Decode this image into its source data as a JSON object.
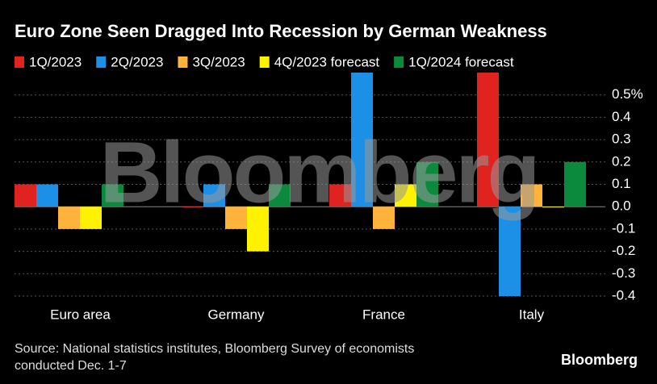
{
  "chart_data": {
    "type": "bar",
    "title": "Euro Zone Seen Dragged Into Recession by German Weakness",
    "categories": [
      "Euro area",
      "Germany",
      "France",
      "Italy"
    ],
    "series": [
      {
        "name": "1Q/2023",
        "color": "#e0231e",
        "values": [
          0.1,
          0.0,
          0.1,
          0.6
        ]
      },
      {
        "name": "2Q/2023",
        "color": "#1c8fe6",
        "values": [
          0.1,
          0.1,
          0.6,
          -0.4
        ]
      },
      {
        "name": "3Q/2023",
        "color": "#ffb33a",
        "values": [
          -0.1,
          -0.1,
          -0.1,
          0.1
        ]
      },
      {
        "name": "4Q/2023 forecast",
        "color": "#fff200",
        "values": [
          -0.1,
          -0.2,
          0.1,
          0.0
        ]
      },
      {
        "name": "1Q/2024 forecast",
        "color": "#0b8a3e",
        "values": [
          0.1,
          0.1,
          0.2,
          0.2
        ]
      }
    ],
    "ylim": [
      -0.4,
      0.6
    ],
    "yticks": [
      {
        "value": 0.5,
        "label": "0.5%"
      },
      0.4,
      0.3,
      0.2,
      0.1,
      {
        "value": 0,
        "label": "0.0"
      },
      -0.1,
      -0.2,
      -0.3,
      -0.4
    ],
    "grid": true,
    "source": "Source: National statistics institutes, Bloomberg Survey of economists",
    "source_line2": "conducted Dec. 1-7",
    "watermark": "Bloomberg",
    "logo": "Bloomberg"
  }
}
